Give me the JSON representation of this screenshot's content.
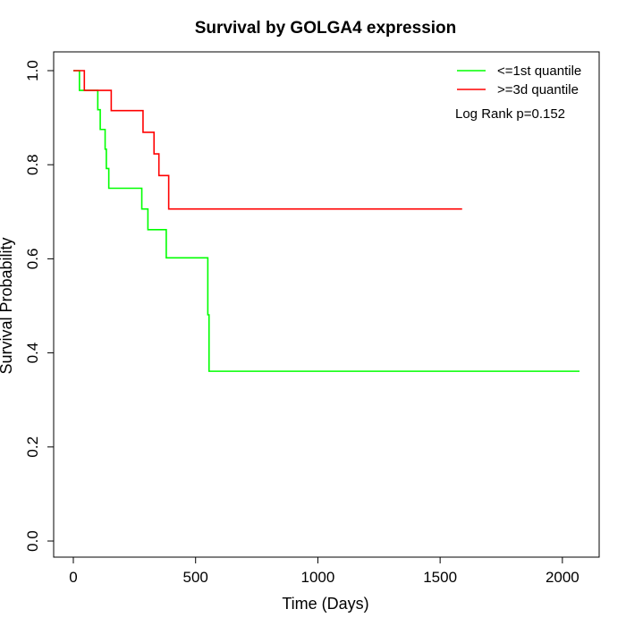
{
  "chart_data": {
    "type": "line",
    "title": "Survival by GOLGA4 expression",
    "xlabel": "Time (Days)",
    "ylabel": "Survival Probability",
    "xlim": [
      0,
      2070
    ],
    "ylim": [
      0,
      1
    ],
    "x_ticks": [
      0,
      500,
      1000,
      1500,
      2000
    ],
    "y_ticks": [
      0.0,
      0.2,
      0.4,
      0.6,
      0.8,
      1.0
    ],
    "x_tick_labels": [
      "0",
      "500",
      "1000",
      "1500",
      "2000"
    ],
    "y_tick_labels": [
      "0.0",
      "0.2",
      "0.4",
      "0.6",
      "0.8",
      "1.0"
    ],
    "grid": false,
    "legend_position": "top-right",
    "annotation": "Log Rank p=0.152",
    "series": [
      {
        "name": "<=1st quantile",
        "color": "#00ff00",
        "step": true,
        "x": [
          0,
          25,
          100,
          110,
          130,
          135,
          145,
          280,
          305,
          380,
          550,
          555,
          2070
        ],
        "y": [
          1.0,
          0.958,
          0.917,
          0.875,
          0.833,
          0.792,
          0.75,
          0.706,
          0.662,
          0.602,
          0.481,
          0.361,
          0.361
        ]
      },
      {
        "name": ">=3d quantile",
        "color": "#ff0000",
        "step": true,
        "x": [
          0,
          45,
          155,
          285,
          330,
          350,
          390,
          1590
        ],
        "y": [
          1.0,
          0.958,
          0.915,
          0.869,
          0.823,
          0.777,
          0.706,
          0.706
        ]
      }
    ]
  }
}
